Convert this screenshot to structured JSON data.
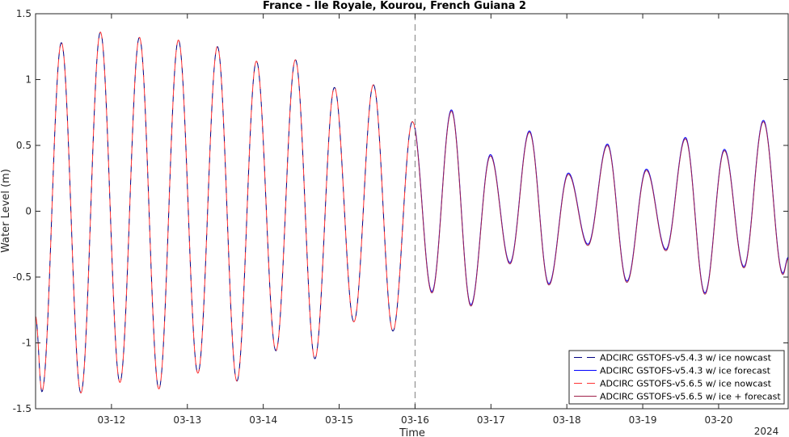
{
  "chart_data": {
    "type": "line",
    "title": "France - Ile Royale, Kourou, French Guiana 2",
    "xlabel": "Time",
    "ylabel": "Water Level (m)",
    "year_label": "2024",
    "xlim": [
      "2024-03-11T00:00",
      "2024-03-20T22:00"
    ],
    "ylim": [
      -1.5,
      1.5
    ],
    "yticks": [
      -1.5,
      -1,
      -0.5,
      0,
      0.5,
      1,
      1.5
    ],
    "ytick_labels": [
      "-1.5",
      "-1",
      "-0.5",
      "0",
      "0.5",
      "1",
      "1.5"
    ],
    "xticks": [
      "2024-03-12",
      "2024-03-13",
      "2024-03-14",
      "2024-03-15",
      "2024-03-16",
      "2024-03-17",
      "2024-03-18",
      "2024-03-19",
      "2024-03-20"
    ],
    "xtick_labels": [
      "03-12",
      "03-13",
      "03-14",
      "03-15",
      "03-16",
      "03-17",
      "03-18",
      "03-19",
      "03-20"
    ],
    "nowcast_forecast_divider": "2024-03-16T00:00",
    "grid": false,
    "legend_position": "bottom-right",
    "extrema": [
      {
        "t": "2024-03-11T00:00",
        "v": -0.8
      },
      {
        "t": "2024-03-11T02:00",
        "v": -1.37
      },
      {
        "t": "2024-03-11T08:10",
        "v": 1.28
      },
      {
        "t": "2024-03-11T14:20",
        "v": -1.38
      },
      {
        "t": "2024-03-11T20:30",
        "v": 1.36
      },
      {
        "t": "2024-03-12T02:40",
        "v": -1.3
      },
      {
        "t": "2024-03-12T08:50",
        "v": 1.32
      },
      {
        "t": "2024-03-12T15:00",
        "v": -1.35
      },
      {
        "t": "2024-03-12T21:10",
        "v": 1.3
      },
      {
        "t": "2024-03-13T03:20",
        "v": -1.23
      },
      {
        "t": "2024-03-13T09:30",
        "v": 1.25
      },
      {
        "t": "2024-03-13T15:40",
        "v": -1.29
      },
      {
        "t": "2024-03-13T21:50",
        "v": 1.14
      },
      {
        "t": "2024-03-14T04:00",
        "v": -1.06
      },
      {
        "t": "2024-03-14T10:10",
        "v": 1.15
      },
      {
        "t": "2024-03-14T16:20",
        "v": -1.12
      },
      {
        "t": "2024-03-14T22:30",
        "v": 0.94
      },
      {
        "t": "2024-03-15T04:40",
        "v": -0.84
      },
      {
        "t": "2024-03-15T10:50",
        "v": 0.96
      },
      {
        "t": "2024-03-15T17:00",
        "v": -0.91
      },
      {
        "t": "2024-03-15T23:10",
        "v": 0.68
      },
      {
        "t": "2024-03-16T05:20",
        "v": -0.62
      },
      {
        "t": "2024-03-16T11:30",
        "v": 0.76
      },
      {
        "t": "2024-03-16T17:40",
        "v": -0.72
      },
      {
        "t": "2024-03-16T23:50",
        "v": 0.42
      },
      {
        "t": "2024-03-17T06:00",
        "v": -0.4
      },
      {
        "t": "2024-03-17T12:10",
        "v": 0.6
      },
      {
        "t": "2024-03-17T18:20",
        "v": -0.56
      },
      {
        "t": "2024-03-18T00:30",
        "v": 0.28
      },
      {
        "t": "2024-03-18T06:40",
        "v": -0.26
      },
      {
        "t": "2024-03-18T12:50",
        "v": 0.5
      },
      {
        "t": "2024-03-18T19:00",
        "v": -0.54
      },
      {
        "t": "2024-03-19T01:10",
        "v": 0.31
      },
      {
        "t": "2024-03-19T07:20",
        "v": -0.3
      },
      {
        "t": "2024-03-19T13:30",
        "v": 0.55
      },
      {
        "t": "2024-03-19T19:40",
        "v": -0.63
      },
      {
        "t": "2024-03-20T01:50",
        "v": 0.46
      },
      {
        "t": "2024-03-20T08:00",
        "v": -0.43
      },
      {
        "t": "2024-03-20T14:10",
        "v": 0.68
      },
      {
        "t": "2024-03-20T20:20",
        "v": -0.48
      },
      {
        "t": "2024-03-20T22:00",
        "v": -0.36
      }
    ],
    "series": [
      {
        "name": "ADCIRC GSTOFS-v5.4.3 w/ ice nowcast",
        "color": "#000080",
        "dash": "dashed",
        "range": "nowcast"
      },
      {
        "name": "ADCIRC GSTOFS-v5.4.3 w/ ice forecast",
        "color": "#0000ff",
        "dash": "solid",
        "range": "forecast",
        "offset": 0.01
      },
      {
        "name": "ADCIRC GSTOFS-v5.6.5 w/ ice nowcast",
        "color": "#ff3333",
        "dash": "dashed",
        "range": "nowcast"
      },
      {
        "name": "ADCIRC GSTOFS-v5.6.5 w/ ice + forecast",
        "color": "#a0204a",
        "dash": "solid",
        "range": "forecast"
      }
    ]
  }
}
